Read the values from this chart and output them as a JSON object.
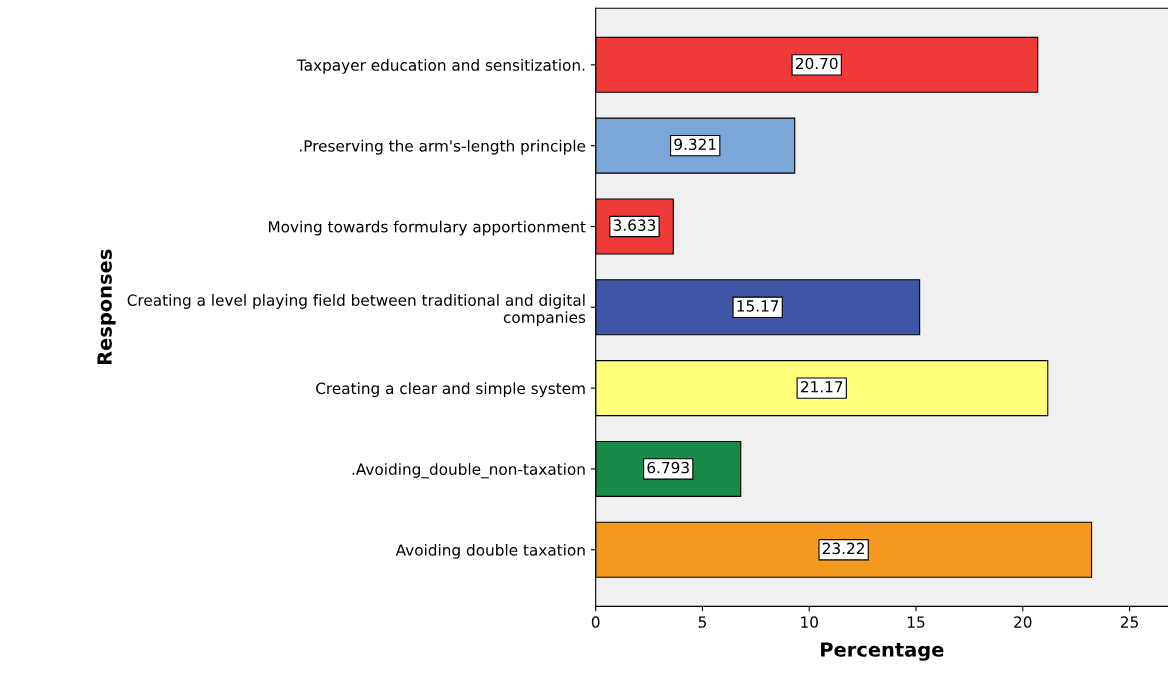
{
  "chart_data": {
    "type": "bar",
    "orientation": "horizontal",
    "xlabel": "Percentage",
    "ylabel": "Responses",
    "categories": [
      "Taxpayer education and sensitization.",
      ".Preserving the arm's-length principle",
      "Moving towards formulary apportionment",
      "Creating a level playing field between traditional and digital\ncompanies",
      "Creating a clear and simple system",
      ".Avoiding_double_non-taxation",
      "Avoiding double taxation"
    ],
    "values": [
      20.7,
      9.321,
      3.633,
      15.17,
      21.17,
      6.793,
      23.22
    ],
    "colors": [
      "#f03a3a",
      "#7aa7d8",
      "#f03a3a",
      "#3f55a5",
      "#ffff7a",
      "#1a8a4a",
      "#f59a1e"
    ],
    "value_labels": [
      "20.70",
      "9.321",
      "3.633",
      "15.17",
      "21.17",
      "6.793",
      "23.22"
    ],
    "xlim": [
      0,
      26.8
    ],
    "xticks": [
      0,
      5,
      10,
      15,
      20,
      25
    ],
    "grid": false,
    "legend": false
  }
}
